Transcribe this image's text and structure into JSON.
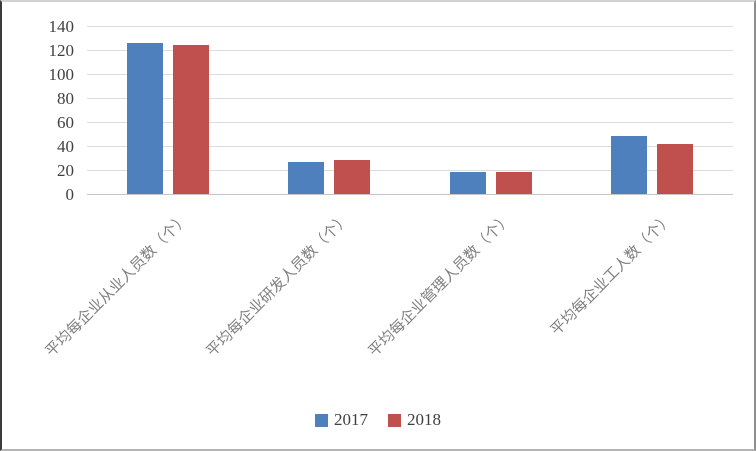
{
  "chart_data": {
    "type": "bar",
    "title": "",
    "xlabel": "",
    "ylabel": "",
    "categories": [
      "平均每企业从业人员数（个）",
      "平均每企业研发人员数（个）",
      "平均每企业管理人员数（个）",
      "平均每企业工人数（个）"
    ],
    "series": [
      {
        "name": "2017",
        "color": "#4E80BE",
        "values": [
          126,
          27,
          18,
          48
        ]
      },
      {
        "name": "2018",
        "color": "#C0504D",
        "values": [
          124,
          28,
          18,
          42
        ]
      }
    ],
    "ylim": [
      0,
      140
    ],
    "ytick_interval": 20,
    "ytick_labels": [
      "0",
      "20",
      "40",
      "60",
      "80",
      "100",
      "120",
      "140"
    ],
    "grid": true,
    "legend_position": "bottom",
    "colors": {
      "gridline": "#dcdcdc",
      "axis_line": "#c6c6c6",
      "tick_label_text": "#404040",
      "category_label_text": "#7f7f7f",
      "legend_text": "#404040",
      "background": "#ffffff"
    }
  }
}
